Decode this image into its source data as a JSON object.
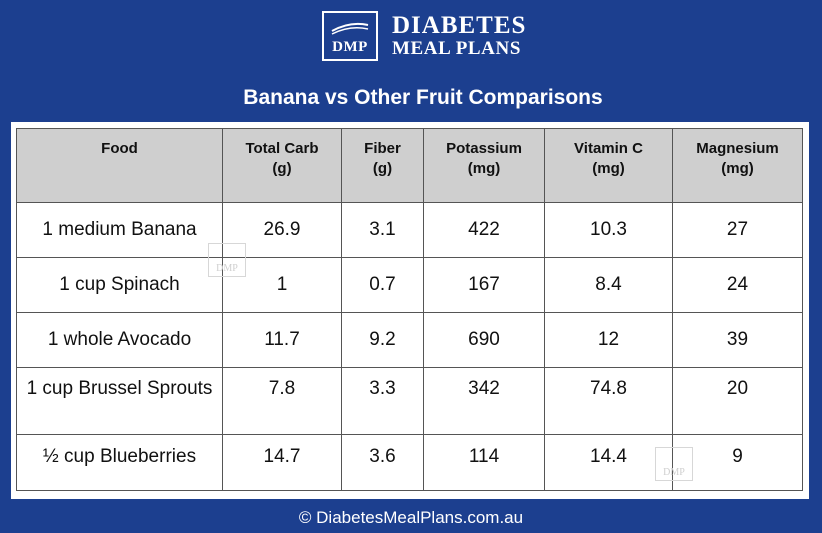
{
  "brand": {
    "logo_mark": "DMP",
    "line1": "DIABETES",
    "line2": "MEAL PLANS"
  },
  "title": "Banana vs Other Fruit Comparisons",
  "table": {
    "headers": [
      [
        "Food",
        ""
      ],
      [
        "Total Carb",
        "(g)"
      ],
      [
        "Fiber",
        "(g)"
      ],
      [
        "Potassium",
        "(mg)"
      ],
      [
        "Vitamin C",
        "(mg)"
      ],
      [
        "Magnesium",
        "(mg)"
      ]
    ],
    "rows": [
      [
        "1 medium Banana",
        "26.9",
        "3.1",
        "422",
        "10.3",
        "27"
      ],
      [
        "1 cup Spinach",
        "1",
        "0.7",
        "167",
        "8.4",
        "24"
      ],
      [
        "1 whole Avocado",
        "11.7",
        "9.2",
        "690",
        "12",
        "39"
      ],
      [
        "1 cup Brussel Sprouts",
        "7.8",
        "3.3",
        "342",
        "74.8",
        "20"
      ],
      [
        "½ cup Blueberries",
        "14.7",
        "3.6",
        "114",
        "14.4",
        "9"
      ]
    ]
  },
  "watermark": "DMP",
  "footer": "© DiabetesMealPlans.com.au",
  "colors": {
    "background": "#1c3f8f",
    "header_fill": "#cfcfcf"
  }
}
